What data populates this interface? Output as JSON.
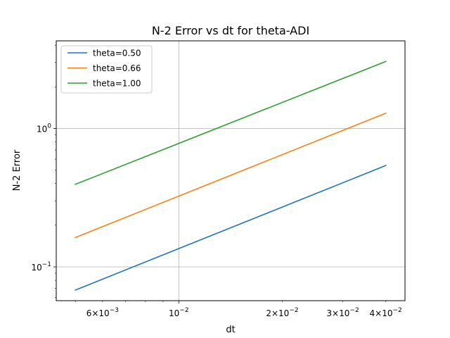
{
  "chart_data": {
    "type": "line",
    "title": "N-2 Error vs dt for theta-ADI",
    "xlabel": "dt",
    "ylabel": "N-2 Error",
    "xscale": "log",
    "yscale": "log",
    "xlim": [
      0.0044,
      0.0455
    ],
    "ylim": [
      0.057,
      4.3
    ],
    "grid": "major",
    "legend_position": "top-left",
    "x": [
      0.005,
      0.04
    ],
    "series": [
      {
        "name": "theta=0.50",
        "color": "#1f77b4",
        "values": [
          0.068,
          0.54
        ]
      },
      {
        "name": "theta=0.66",
        "color": "#ff7f0e",
        "values": [
          0.163,
          1.29
        ]
      },
      {
        "name": "theta=1.00",
        "color": "#2ca02c",
        "values": [
          0.395,
          3.05
        ]
      }
    ],
    "x_major_ticks": [
      {
        "value": 0.01,
        "mantissa": "",
        "exponent": "−2"
      }
    ],
    "x_minor_labeled_ticks": [
      {
        "value": 0.006,
        "mantissa": "6",
        "exponent": "−3"
      },
      {
        "value": 0.02,
        "mantissa": "2",
        "exponent": "−2"
      },
      {
        "value": 0.03,
        "mantissa": "3",
        "exponent": "−2"
      },
      {
        "value": 0.04,
        "mantissa": "4",
        "exponent": "−2"
      }
    ],
    "y_major_ticks": [
      {
        "value": 1,
        "mantissa": "",
        "exponent": "0"
      },
      {
        "value": 0.1,
        "mantissa": "",
        "exponent": "−1"
      }
    ]
  }
}
